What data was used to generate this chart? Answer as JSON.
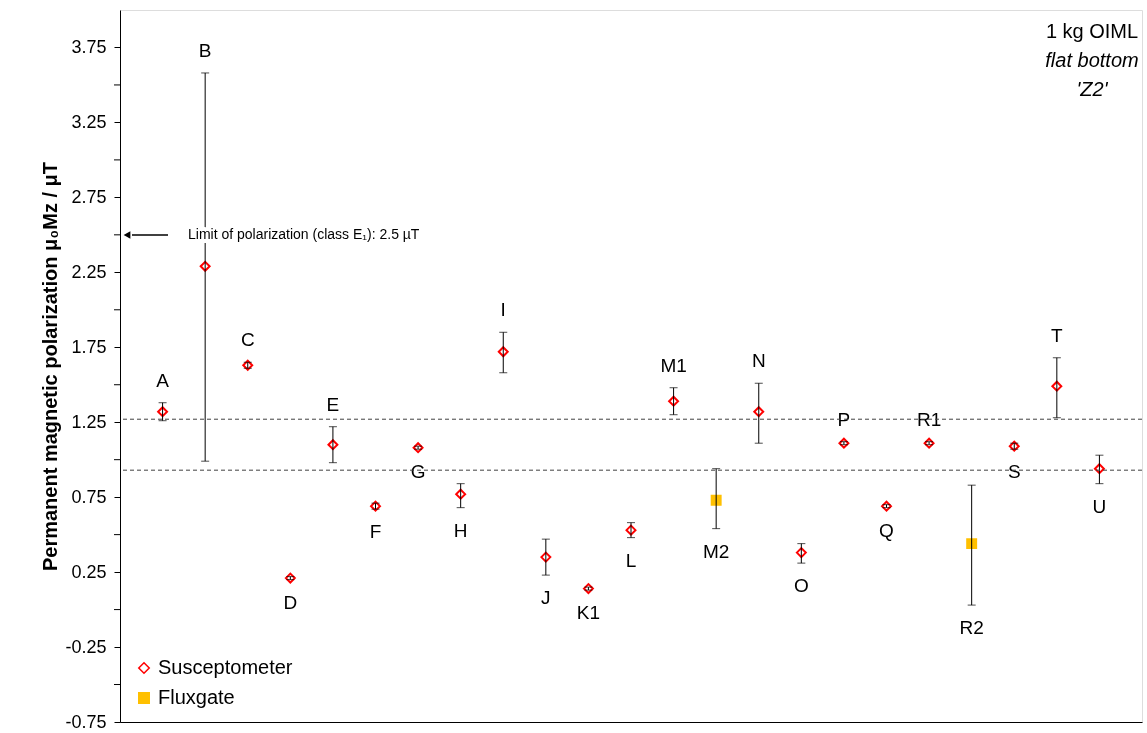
{
  "chart_data": {
    "type": "scatter",
    "ylabel": "Permanent magnetic polarization  μ₀Mz / μT",
    "categories": [
      "A",
      "B",
      "C",
      "D",
      "E",
      "F",
      "G",
      "H",
      "I",
      "J",
      "K1",
      "L",
      "M1",
      "M2",
      "N",
      "O",
      "P",
      "Q",
      "R1",
      "R2",
      "S",
      "T",
      "U"
    ],
    "series": [
      {
        "name": "Susceptometer",
        "color": "#ff0000",
        "marker": "diamond",
        "values": [
          1.32,
          2.29,
          1.63,
          0.21,
          1.1,
          0.69,
          1.08,
          0.77,
          1.72,
          0.35,
          0.14,
          0.53,
          1.39,
          null,
          1.32,
          0.38,
          1.11,
          0.69,
          1.11,
          null,
          1.09,
          1.49,
          0.94
        ],
        "errors": [
          [
            1.26,
            1.38
          ],
          [
            0.99,
            3.58
          ],
          0.02,
          0.01,
          [
            0.98,
            1.22
          ],
          0.02,
          0.01,
          [
            0.68,
            0.84
          ],
          [
            1.58,
            1.85
          ],
          [
            0.23,
            0.47
          ],
          0.01,
          [
            0.48,
            0.58
          ],
          [
            1.3,
            1.48
          ],
          null,
          [
            1.11,
            1.51
          ],
          [
            0.31,
            0.44
          ],
          0.01,
          0.01,
          0.01,
          null,
          0.02,
          [
            1.28,
            1.68
          ],
          [
            0.84,
            1.03
          ]
        ]
      },
      {
        "name": "Fluxgate",
        "color": "#ffc000",
        "marker": "square",
        "values": [
          null,
          null,
          null,
          null,
          null,
          null,
          null,
          null,
          null,
          null,
          null,
          null,
          null,
          0.73,
          null,
          null,
          null,
          null,
          null,
          0.44,
          null,
          null,
          null
        ],
        "errors": [
          null,
          null,
          null,
          null,
          null,
          null,
          null,
          null,
          null,
          null,
          null,
          null,
          null,
          [
            0.54,
            0.94
          ],
          null,
          null,
          null,
          null,
          null,
          [
            0.03,
            0.83
          ],
          null,
          null,
          null
        ]
      }
    ],
    "ylim": [
      -0.75,
      4.0
    ],
    "yticks": [
      -0.75,
      {
        "value": -0.5,
        "label": null
      },
      -0.25,
      {
        "value": 0,
        "label": null
      },
      0.25,
      {
        "value": 0.5,
        "label": null
      },
      0.75,
      {
        "value": 1.0,
        "label": null
      },
      1.25,
      {
        "value": 1.5,
        "label": null
      },
      1.75,
      {
        "value": 2.0,
        "label": null
      },
      2.25,
      {
        "value": 2.5,
        "label": null
      },
      2.75,
      {
        "value": 3.0,
        "label": null
      },
      3.25,
      {
        "value": 3.5,
        "label": null
      },
      3.75
    ],
    "ref_lines": [
      {
        "axis": "y",
        "value": 1.27,
        "color": "#404040",
        "line_style": "dashed"
      },
      {
        "axis": "y",
        "value": 0.93,
        "color": "#404040",
        "line_style": "dashed"
      }
    ],
    "annotations": [
      "Limit of polarization (class E₁): 2.5 µT",
      "1 kg OIML",
      "flat bottom",
      "'Z2'"
    ],
    "tick_labels": "y",
    "grid": false,
    "legend": "bottom left"
  }
}
